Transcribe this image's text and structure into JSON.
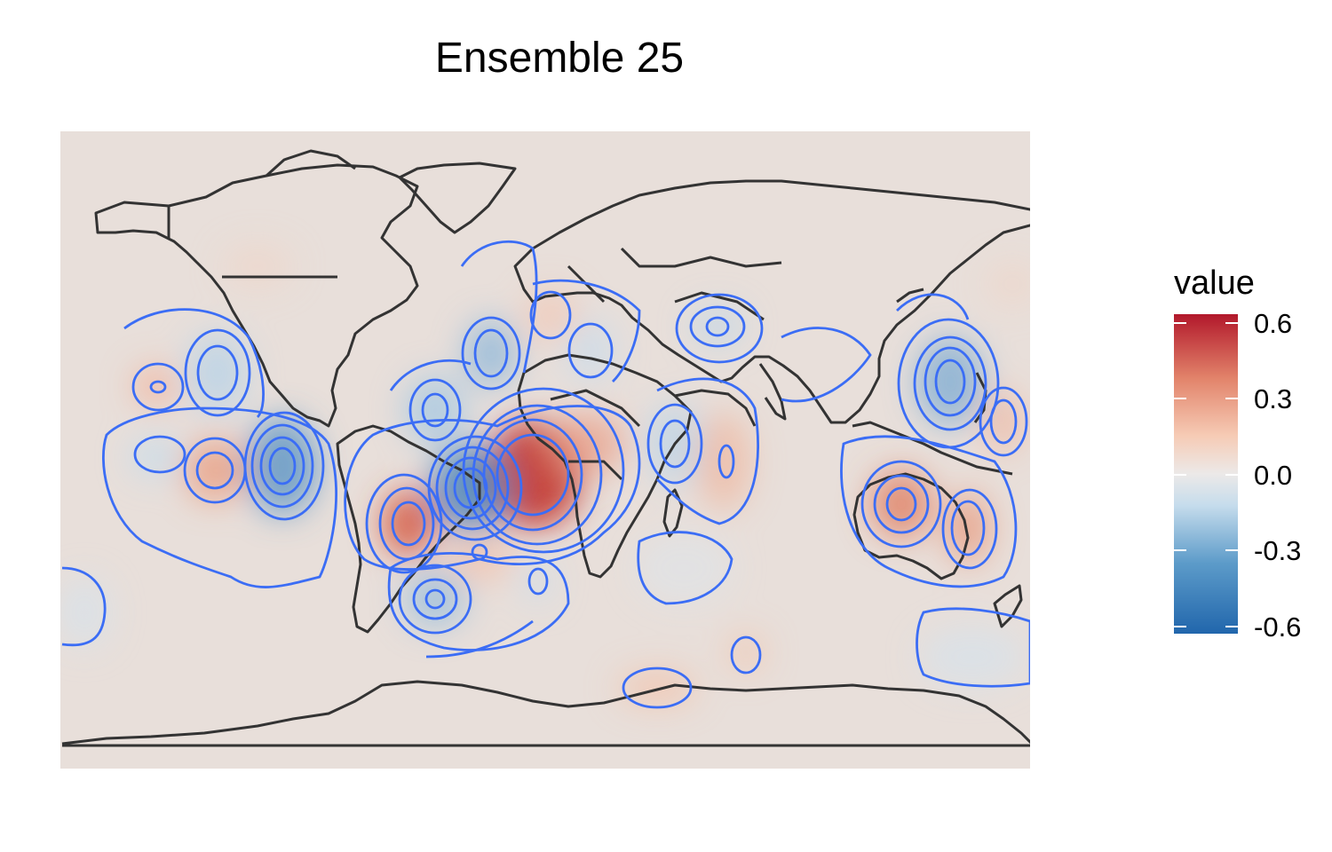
{
  "title": "Ensemble 25",
  "legend": {
    "title": "value",
    "ticks": [
      "0.6",
      "0.3",
      "0.0",
      "-0.3",
      "-0.6"
    ],
    "tick_values": [
      0.6,
      0.3,
      0.0,
      -0.3,
      -0.6
    ],
    "range": [
      -0.65,
      0.65
    ],
    "colors": [
      "#2166ac",
      "#6aa5cd",
      "#d1e5f0",
      "#f0e4e0",
      "#f6c6ae",
      "#e07b5e",
      "#b2182b"
    ]
  },
  "colors": {
    "background": "#e8dfda",
    "contour": "#3b6df5",
    "land_outline": "#333333"
  }
}
